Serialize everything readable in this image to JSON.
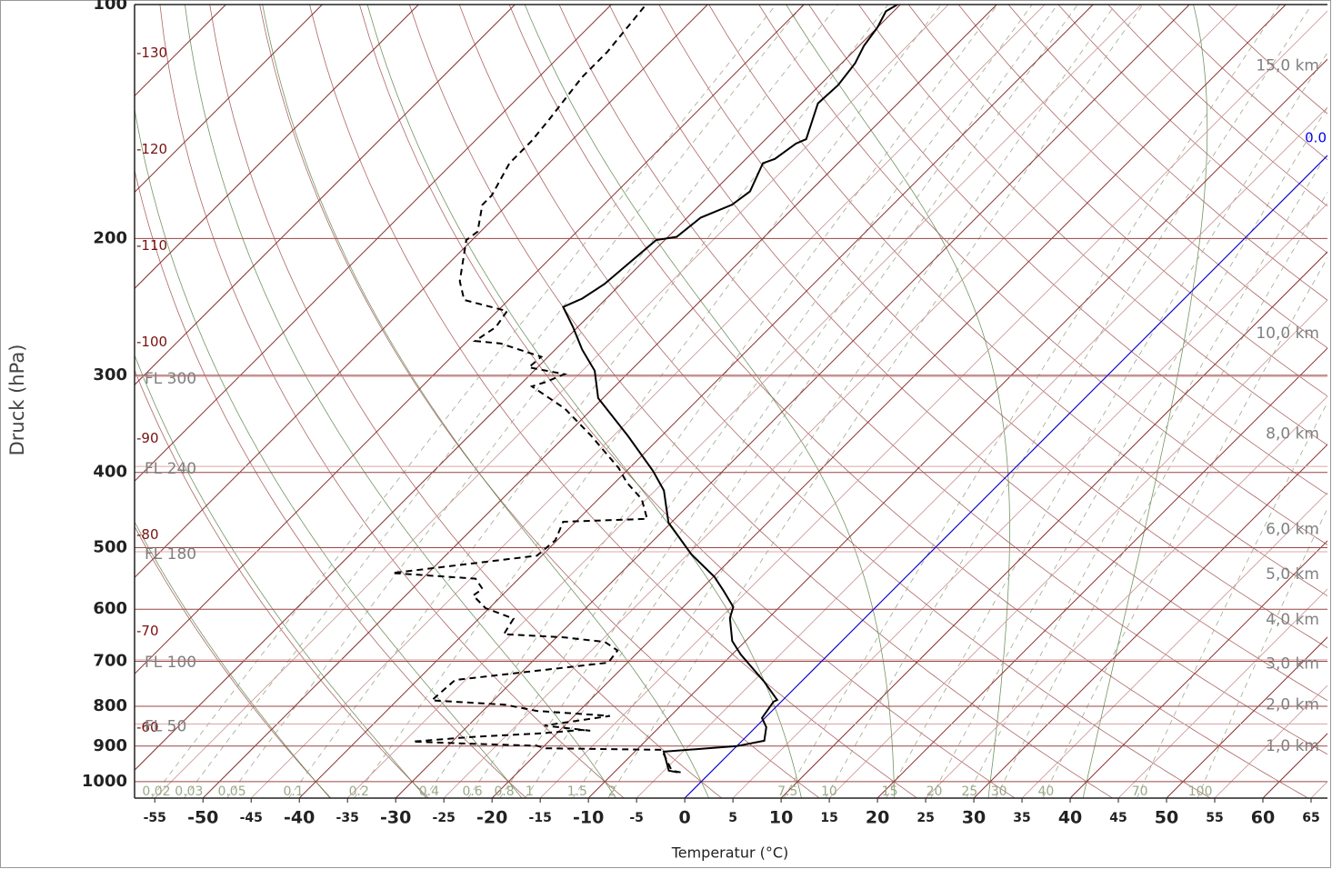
{
  "chart_data": {
    "type": "skewt",
    "xlabel": "Temperatur (°C)",
    "ylabel": "Druck (hPa)",
    "xlim": [
      -57.1,
      66.7
    ],
    "ylim": [
      1050,
      100
    ],
    "xticks": [
      -55,
      -50,
      -45,
      -40,
      -35,
      -30,
      -25,
      -20,
      -15,
      -10,
      -5,
      0,
      5,
      10,
      15,
      20,
      25,
      30,
      35,
      40,
      45,
      50,
      55,
      60,
      65
    ],
    "yticks": [
      100,
      200,
      300,
      400,
      500,
      600,
      700,
      800,
      900,
      1000
    ],
    "isotherm_labels": [
      -130,
      -120,
      -110,
      -100,
      -90,
      -80,
      -70,
      -60
    ],
    "freezing_isotherm": {
      "value": 0,
      "label": "0.0",
      "color": "#0000ee"
    },
    "flight_levels": [
      {
        "label": "FL 300",
        "pressure": 301
      },
      {
        "label": "FL 240",
        "pressure": 393
      },
      {
        "label": "FL 180",
        "pressure": 506
      },
      {
        "label": "FL 100",
        "pressure": 697
      },
      {
        "label": "FL 50",
        "pressure": 843
      }
    ],
    "height_labels": [
      {
        "label": "15,0 km",
        "pressure": 120
      },
      {
        "label": "10,0 km",
        "pressure": 265
      },
      {
        "label": "8,0 km",
        "pressure": 357
      },
      {
        "label": "6,0 km",
        "pressure": 474
      },
      {
        "label": "5,0 km",
        "pressure": 541
      },
      {
        "label": "4,0 km",
        "pressure": 619
      },
      {
        "label": "3,0 km",
        "pressure": 706
      },
      {
        "label": "2,0 km",
        "pressure": 797
      },
      {
        "label": "1,0 km",
        "pressure": 901
      }
    ],
    "mixing_ratios": [
      0.02,
      0.03,
      0.05,
      0.1,
      0.2,
      0.4,
      0.6,
      0.8,
      1,
      1.5,
      2,
      7.5,
      10,
      15,
      20,
      25,
      30,
      40,
      70,
      100
    ],
    "series": [
      {
        "color": "#000000",
        "line_style": "solid",
        "pressure": [
          973,
          968,
          915,
          900,
          886,
          851,
          828,
          789,
          785,
          743,
          686,
          659,
          616,
          596,
          568,
          545,
          510,
          464,
          422,
          398,
          359,
          321,
          296,
          278,
          260,
          245,
          239,
          229,
          201,
          199,
          188,
          181,
          174,
          160,
          158,
          151,
          149,
          134,
          127,
          119,
          113,
          107,
          102,
          100
        ],
        "temperature": [
          -3.4,
          -4.5,
          -7.0,
          0.0,
          2.3,
          1.1,
          -0.3,
          -0.8,
          -0.6,
          -3.9,
          -9.1,
          -11.4,
          -14.0,
          -14.8,
          -17.5,
          -19.9,
          -24.6,
          -30.3,
          -34.1,
          -37.3,
          -43.5,
          -50.5,
          -53.7,
          -57.2,
          -60.5,
          -63.6,
          -62.5,
          -61.7,
          -60.9,
          -59.1,
          -58.6,
          -56.7,
          -56.2,
          -57.8,
          -57.0,
          -56.4,
          -55.8,
          -58.3,
          -58.1,
          -58.6,
          -59.5,
          -60.0,
          -60.8,
          -60.3
        ]
      },
      {
        "color": "#000000",
        "line_style": "dashed",
        "pressure": [
          973,
          968,
          910,
          906,
          899,
          893,
          888,
          876,
          866,
          858,
          860,
          847,
          823,
          811,
          796,
          786,
          740,
          703,
          678,
          661,
          652,
          646,
          617,
          598,
          576,
          565,
          548,
          539,
          512,
          489,
          463,
          459,
          433,
          412,
          395,
          359,
          331,
          310,
          306,
          299,
          293,
          284,
          273,
          271,
          260,
          248,
          240,
          227,
          201,
          196,
          181,
          176,
          160,
          150,
          141,
          124,
          115,
          100
        ],
        "temperature": [
          -3.1,
          -4.2,
          -7.4,
          -19.6,
          -20.8,
          -28.7,
          -34.1,
          -28.4,
          -21.3,
          -17.8,
          -16.8,
          -22.1,
          -16.3,
          -24.4,
          -28.4,
          -36.4,
          -36.1,
          -22.0,
          -22.3,
          -24.5,
          -29.3,
          -35.8,
          -36.4,
          -40.4,
          -43.0,
          -42.7,
          -44.5,
          -53.7,
          -40.5,
          -40.2,
          -41.3,
          -32.9,
          -35.5,
          -38.8,
          -41.1,
          -47.3,
          -52.9,
          -58.6,
          -57.6,
          -56.5,
          -60.9,
          -60.7,
          -66.3,
          -69.2,
          -68.5,
          -69.0,
          -74.6,
          -77.0,
          -80.6,
          -80.3,
          -82.6,
          -82.6,
          -84.1,
          -84.1,
          -84.5,
          -85.5,
          -85.5,
          -86.4
        ]
      }
    ]
  }
}
